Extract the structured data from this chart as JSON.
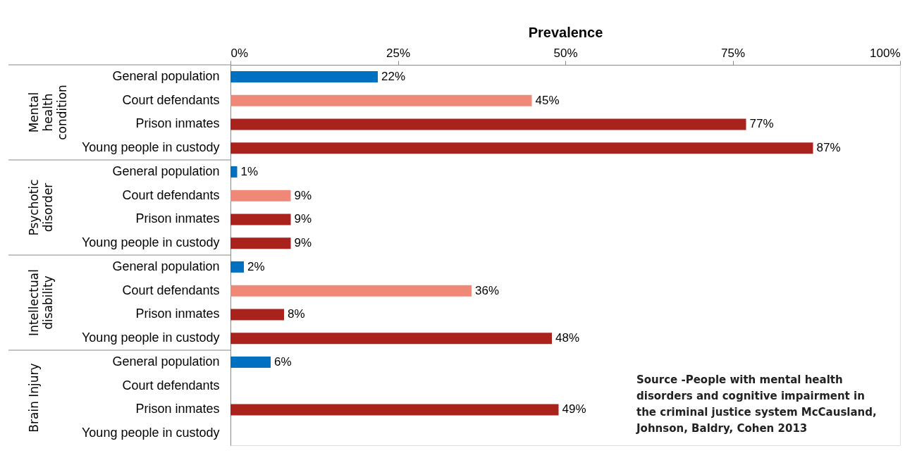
{
  "chart_data": {
    "type": "bar",
    "orientation": "horizontal",
    "xlabel": "Prevalence",
    "categories": [
      "General population",
      "Court defendants",
      "Prison inmates",
      "Young people in custody",
      "General population",
      "Court defendants",
      "Prison inmates",
      "Young people in custody",
      "General population",
      "Court defendants",
      "Prison inmates",
      "Young people in custody",
      "General population",
      "Court defendants",
      "Prison inmates",
      "Young people in custody"
    ],
    "values": [
      22,
      45,
      77,
      87,
      1,
      9,
      9,
      9,
      2,
      36,
      8,
      48,
      6,
      null,
      49,
      null
    ],
    "value_labels": [
      "22%",
      "45%",
      "77%",
      "87%",
      "1%",
      "9%",
      "9%",
      "9%",
      "2%",
      "36%",
      "8%",
      "48%",
      "6%",
      null,
      "49%",
      null
    ],
    "colors": [
      "#0070c0",
      "#f08878",
      "#a9231c",
      "#a9231c",
      "#0070c0",
      "#f08878",
      "#a9231c",
      "#a9231c",
      "#0070c0",
      "#f08878",
      "#a9231c",
      "#a9231c",
      "#0070c0",
      "#f08878",
      "#a9231c",
      "#a9231c"
    ],
    "xlim": [
      0,
      100
    ],
    "xticks": [
      {
        "value": 0,
        "label": "0%"
      },
      {
        "value": 25,
        "label": "25%"
      },
      {
        "value": 50,
        "label": "50%"
      },
      {
        "value": 75,
        "label": "75%"
      },
      {
        "value": 100,
        "label": "100%"
      }
    ],
    "grid": false,
    "annotations": [
      "Mental health condition",
      "Psychotic disorder",
      "Intellectual disability",
      "Brain Injury",
      "Source -People with mental health disorders and cognitive impairment in the criminal justice system McCausland, Johnson, Baldry, Cohen 2013"
    ]
  }
}
